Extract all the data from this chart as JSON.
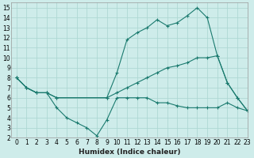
{
  "xlabel": "Humidex (Indice chaleur)",
  "bg_color": "#ceecea",
  "grid_color": "#aed8d4",
  "line_color": "#1a7a6e",
  "xlim": [
    -0.5,
    23
  ],
  "ylim": [
    2,
    15.5
  ],
  "xticks": [
    0,
    1,
    2,
    3,
    4,
    5,
    6,
    7,
    8,
    9,
    10,
    11,
    12,
    13,
    14,
    15,
    16,
    17,
    18,
    19,
    20,
    21,
    22,
    23
  ],
  "yticks": [
    2,
    3,
    4,
    5,
    6,
    7,
    8,
    9,
    10,
    11,
    12,
    13,
    14,
    15
  ],
  "line1_x": [
    0,
    1,
    2,
    3,
    4,
    5,
    6,
    7,
    8,
    9,
    10,
    11,
    12,
    13,
    14,
    15,
    16,
    17,
    18,
    19,
    20,
    21,
    22,
    23
  ],
  "line1_y": [
    8,
    7,
    6.5,
    6.5,
    5,
    4,
    3.5,
    3,
    2.2,
    3.8,
    6,
    6,
    6,
    6,
    5.5,
    5.5,
    5.2,
    5,
    5,
    5,
    5,
    5.5,
    5,
    4.7
  ],
  "line2_x": [
    0,
    1,
    2,
    3,
    4,
    9,
    10,
    11,
    12,
    13,
    14,
    15,
    16,
    17,
    18,
    19,
    20,
    21,
    22,
    23
  ],
  "line2_y": [
    8,
    7,
    6.5,
    6.5,
    6,
    6,
    8.5,
    11.8,
    12.5,
    13,
    13.8,
    13.2,
    13.5,
    14.2,
    15,
    14,
    10.2,
    7.5,
    6,
    4.7
  ],
  "line3_x": [
    0,
    1,
    2,
    3,
    4,
    9,
    10,
    11,
    12,
    13,
    14,
    15,
    16,
    17,
    18,
    19,
    20,
    21,
    22,
    23
  ],
  "line3_y": [
    8,
    7,
    6.5,
    6.5,
    6,
    6,
    6.5,
    7,
    7.5,
    8,
    8.5,
    9,
    9.2,
    9.5,
    10,
    10,
    10.2,
    7.5,
    6,
    4.7
  ]
}
